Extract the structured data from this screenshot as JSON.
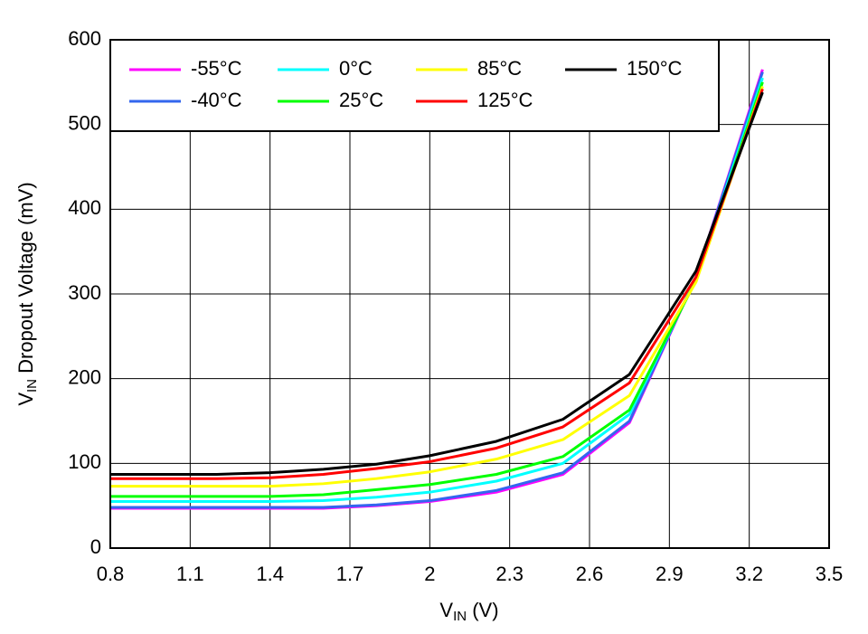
{
  "chart_data": {
    "type": "line",
    "xlabel": {
      "main": "V",
      "sub": "IN",
      "rest": " (V)"
    },
    "ylabel": {
      "main": "V",
      "sub": "IN",
      "rest": " Dropout Voltage (mV)"
    },
    "x": [
      0.8,
      1,
      1.2,
      1.4,
      1.6,
      1.8,
      2,
      2.25,
      2.5,
      2.75,
      3,
      3.25
    ],
    "series": [
      {
        "name": "-55°C",
        "color": "#ff00ff",
        "values": [
          47,
          47,
          47,
          47,
          47,
          50,
          55,
          66,
          87,
          148,
          320,
          565
        ]
      },
      {
        "name": "-40°C",
        "color": "#3366ee",
        "values": [
          48,
          48,
          48,
          48,
          48,
          51,
          56,
          68,
          89,
          150,
          320,
          562
        ]
      },
      {
        "name": "0°C",
        "color": "#00ffff",
        "values": [
          55,
          55,
          55,
          55,
          56,
          60,
          66,
          79,
          100,
          158,
          318,
          555
        ]
      },
      {
        "name": "25°C",
        "color": "#00ff00",
        "values": [
          61,
          61,
          61,
          61,
          63,
          69,
          75,
          87,
          108,
          163,
          316,
          550
        ]
      },
      {
        "name": "85°C",
        "color": "#ffff00",
        "values": [
          73,
          73,
          73,
          73,
          76,
          82,
          90,
          105,
          128,
          180,
          314,
          545
        ]
      },
      {
        "name": "125°C",
        "color": "#ff0000",
        "values": [
          82,
          82,
          82,
          83,
          87,
          94,
          102,
          118,
          143,
          195,
          320,
          542
        ]
      },
      {
        "name": "150°C",
        "color": "#000000",
        "values": [
          87,
          87,
          87,
          89,
          93,
          99,
          109,
          126,
          152,
          205,
          327,
          538
        ]
      }
    ],
    "xlim": [
      0.8,
      3.5
    ],
    "xticks": [
      0.8,
      1.1,
      1.4,
      1.7,
      2,
      2.3,
      2.6,
      2.9,
      3.2,
      3.5
    ],
    "ylim": [
      0,
      600
    ],
    "yticks": [
      0,
      100,
      200,
      300,
      400,
      500,
      600
    ],
    "grid": true,
    "legend": "top-left"
  }
}
